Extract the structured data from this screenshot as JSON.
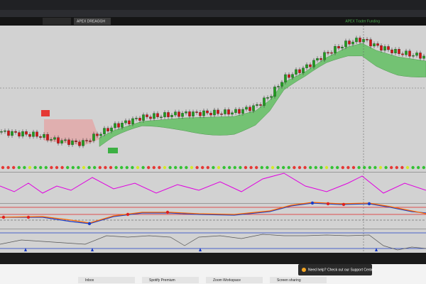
{
  "browser": {
    "active_tab": "APEX DREAGGH",
    "status": "APEX Trader Funding"
  },
  "support_popup": {
    "text": "Need help? Check out our Support Center"
  },
  "taskbar": {
    "items": [
      "Inbox",
      "Spotify Premium",
      "Zoom Workspace",
      "Screen sharing"
    ]
  }
}
